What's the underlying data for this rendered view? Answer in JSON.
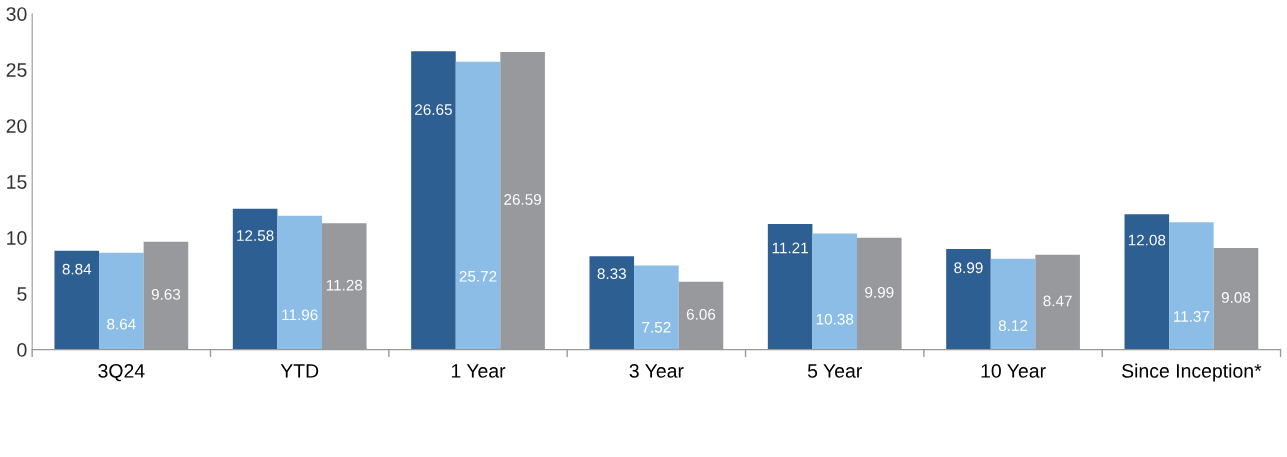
{
  "chart_data": {
    "type": "bar",
    "categories": [
      "3Q24",
      "YTD",
      "1 Year",
      "3 Year",
      "5 Year",
      "10 Year",
      "Since Inception*"
    ],
    "series": [
      {
        "color": "#2e5f93",
        "values": [
          8.84,
          12.58,
          26.65,
          8.33,
          11.21,
          8.99,
          12.08
        ]
      },
      {
        "color": "#8cbde6",
        "values": [
          8.64,
          11.96,
          25.72,
          7.52,
          10.38,
          8.12,
          11.37
        ]
      },
      {
        "color": "#97999c",
        "values": [
          9.63,
          11.28,
          26.59,
          6.06,
          9.99,
          8.47,
          9.08
        ]
      }
    ],
    "ylim": [
      0,
      30
    ],
    "yticks": [
      0,
      5,
      10,
      15,
      20,
      25,
      30
    ],
    "data_labels": true,
    "grid": false
  }
}
